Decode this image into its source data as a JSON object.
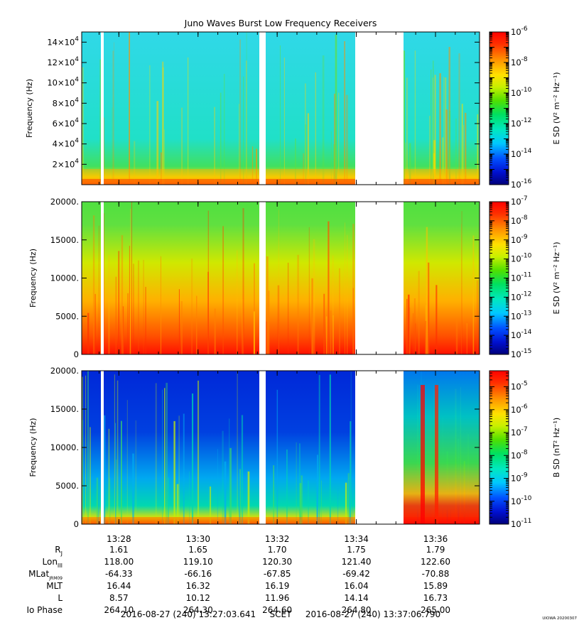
{
  "title": "Juno Waves Burst Low Frequency Receivers",
  "colors": {
    "bg": "#ffffff",
    "axis": "#000000"
  },
  "chart_data": [
    {
      "type": "heatmap",
      "panel": "E-field high band",
      "ylabel": "Frequency (Hz)",
      "y_ticks": [
        {
          "value": 20000,
          "base": "2",
          "exp": "4"
        },
        {
          "value": 40000,
          "base": "4",
          "exp": "4"
        },
        {
          "value": 60000,
          "base": "6",
          "exp": "4"
        },
        {
          "value": 80000,
          "base": "8",
          "exp": "4"
        },
        {
          "value": 100000,
          "base": "10",
          "exp": "4"
        },
        {
          "value": 120000,
          "base": "12",
          "exp": "4"
        },
        {
          "value": 140000,
          "base": "14",
          "exp": "4"
        }
      ],
      "ylim": [
        0,
        150000
      ],
      "colorbar_label": "E SD (V² m⁻² Hz⁻¹)",
      "colorbar_log_range": [
        -16,
        -6
      ],
      "colorbar_ticks": [
        {
          "base": "10",
          "exp": "-6"
        },
        {
          "base": "10",
          "exp": "-8"
        },
        {
          "base": "10",
          "exp": "-10"
        },
        {
          "base": "10",
          "exp": "-12"
        },
        {
          "base": "10",
          "exp": "-14"
        },
        {
          "base": "10",
          "exp": "-16"
        }
      ]
    },
    {
      "type": "heatmap",
      "panel": "E-field low band",
      "ylabel": "Frequency (Hz)",
      "y_ticks": [
        {
          "value": 0,
          "label": "0"
        },
        {
          "value": 5000,
          "label": "5000."
        },
        {
          "value": 10000,
          "label": "10000."
        },
        {
          "value": 15000,
          "label": "15000."
        },
        {
          "value": 20000,
          "label": "20000."
        }
      ],
      "ylim": [
        0,
        20000
      ],
      "colorbar_label": "E SD (V² m⁻² Hz⁻¹)",
      "colorbar_log_range": [
        -15,
        -7
      ],
      "colorbar_ticks": [
        {
          "base": "10",
          "exp": "-7"
        },
        {
          "base": "10",
          "exp": "-8"
        },
        {
          "base": "10",
          "exp": "-9"
        },
        {
          "base": "10",
          "exp": "-10"
        },
        {
          "base": "10",
          "exp": "-11"
        },
        {
          "base": "10",
          "exp": "-12"
        },
        {
          "base": "10",
          "exp": "-13"
        },
        {
          "base": "10",
          "exp": "-14"
        },
        {
          "base": "10",
          "exp": "-15"
        }
      ]
    },
    {
      "type": "heatmap",
      "panel": "B-field",
      "ylabel": "Frequency (Hz)",
      "y_ticks": [
        {
          "value": 0,
          "label": "0"
        },
        {
          "value": 5000,
          "label": "5000."
        },
        {
          "value": 10000,
          "label": "10000."
        },
        {
          "value": 15000,
          "label": "15000."
        },
        {
          "value": 20000,
          "label": "20000."
        }
      ],
      "ylim": [
        0,
        20000
      ],
      "colorbar_label": "B SD (nT² Hz⁻¹)",
      "colorbar_log_range": [
        -11,
        -4.3
      ],
      "colorbar_ticks": [
        {
          "base": "10",
          "exp": "-5"
        },
        {
          "base": "10",
          "exp": "-6"
        },
        {
          "base": "10",
          "exp": "-7"
        },
        {
          "base": "10",
          "exp": "-8"
        },
        {
          "base": "10",
          "exp": "-9"
        },
        {
          "base": "10",
          "exp": "-10"
        },
        {
          "base": "10",
          "exp": "-11"
        }
      ]
    }
  ],
  "x_axis": {
    "time_ticks": [
      "13:28",
      "13:30",
      "13:32",
      "13:34",
      "13:36"
    ]
  },
  "ephemeris": {
    "rows": [
      {
        "label_main": "R",
        "label_sub": "J",
        "values": [
          "1.61",
          "1.65",
          "1.70",
          "1.75",
          "1.79"
        ]
      },
      {
        "label_main": "Lon",
        "label_sub": "III",
        "values": [
          "118.00",
          "119.10",
          "120.30",
          "121.40",
          "122.60"
        ]
      },
      {
        "label_main": "MLat",
        "label_sub": "JRM09",
        "values": [
          "-64.33",
          "-66.16",
          "-67.85",
          "-69.42",
          "-70.88"
        ]
      },
      {
        "label_main": "MLT",
        "label_sub": "",
        "values": [
          "16.44",
          "16.32",
          "16.19",
          "16.04",
          "15.89"
        ]
      },
      {
        "label_main": "L",
        "label_sub": "",
        "values": [
          "8.57",
          "10.12",
          "11.96",
          "14.14",
          "16.73"
        ]
      },
      {
        "label_main": "Io Phase",
        "label_sub": "",
        "values": [
          "264.10",
          "264.30",
          "264.60",
          "264.80",
          "265.00"
        ]
      }
    ]
  },
  "footer": {
    "start": "2016-08-27 (240) 13:27:03.641",
    "scet": "SCET",
    "end": "2016-08-27 (240) 13:37:06.790",
    "stamp": "UIOWA 20200307"
  }
}
